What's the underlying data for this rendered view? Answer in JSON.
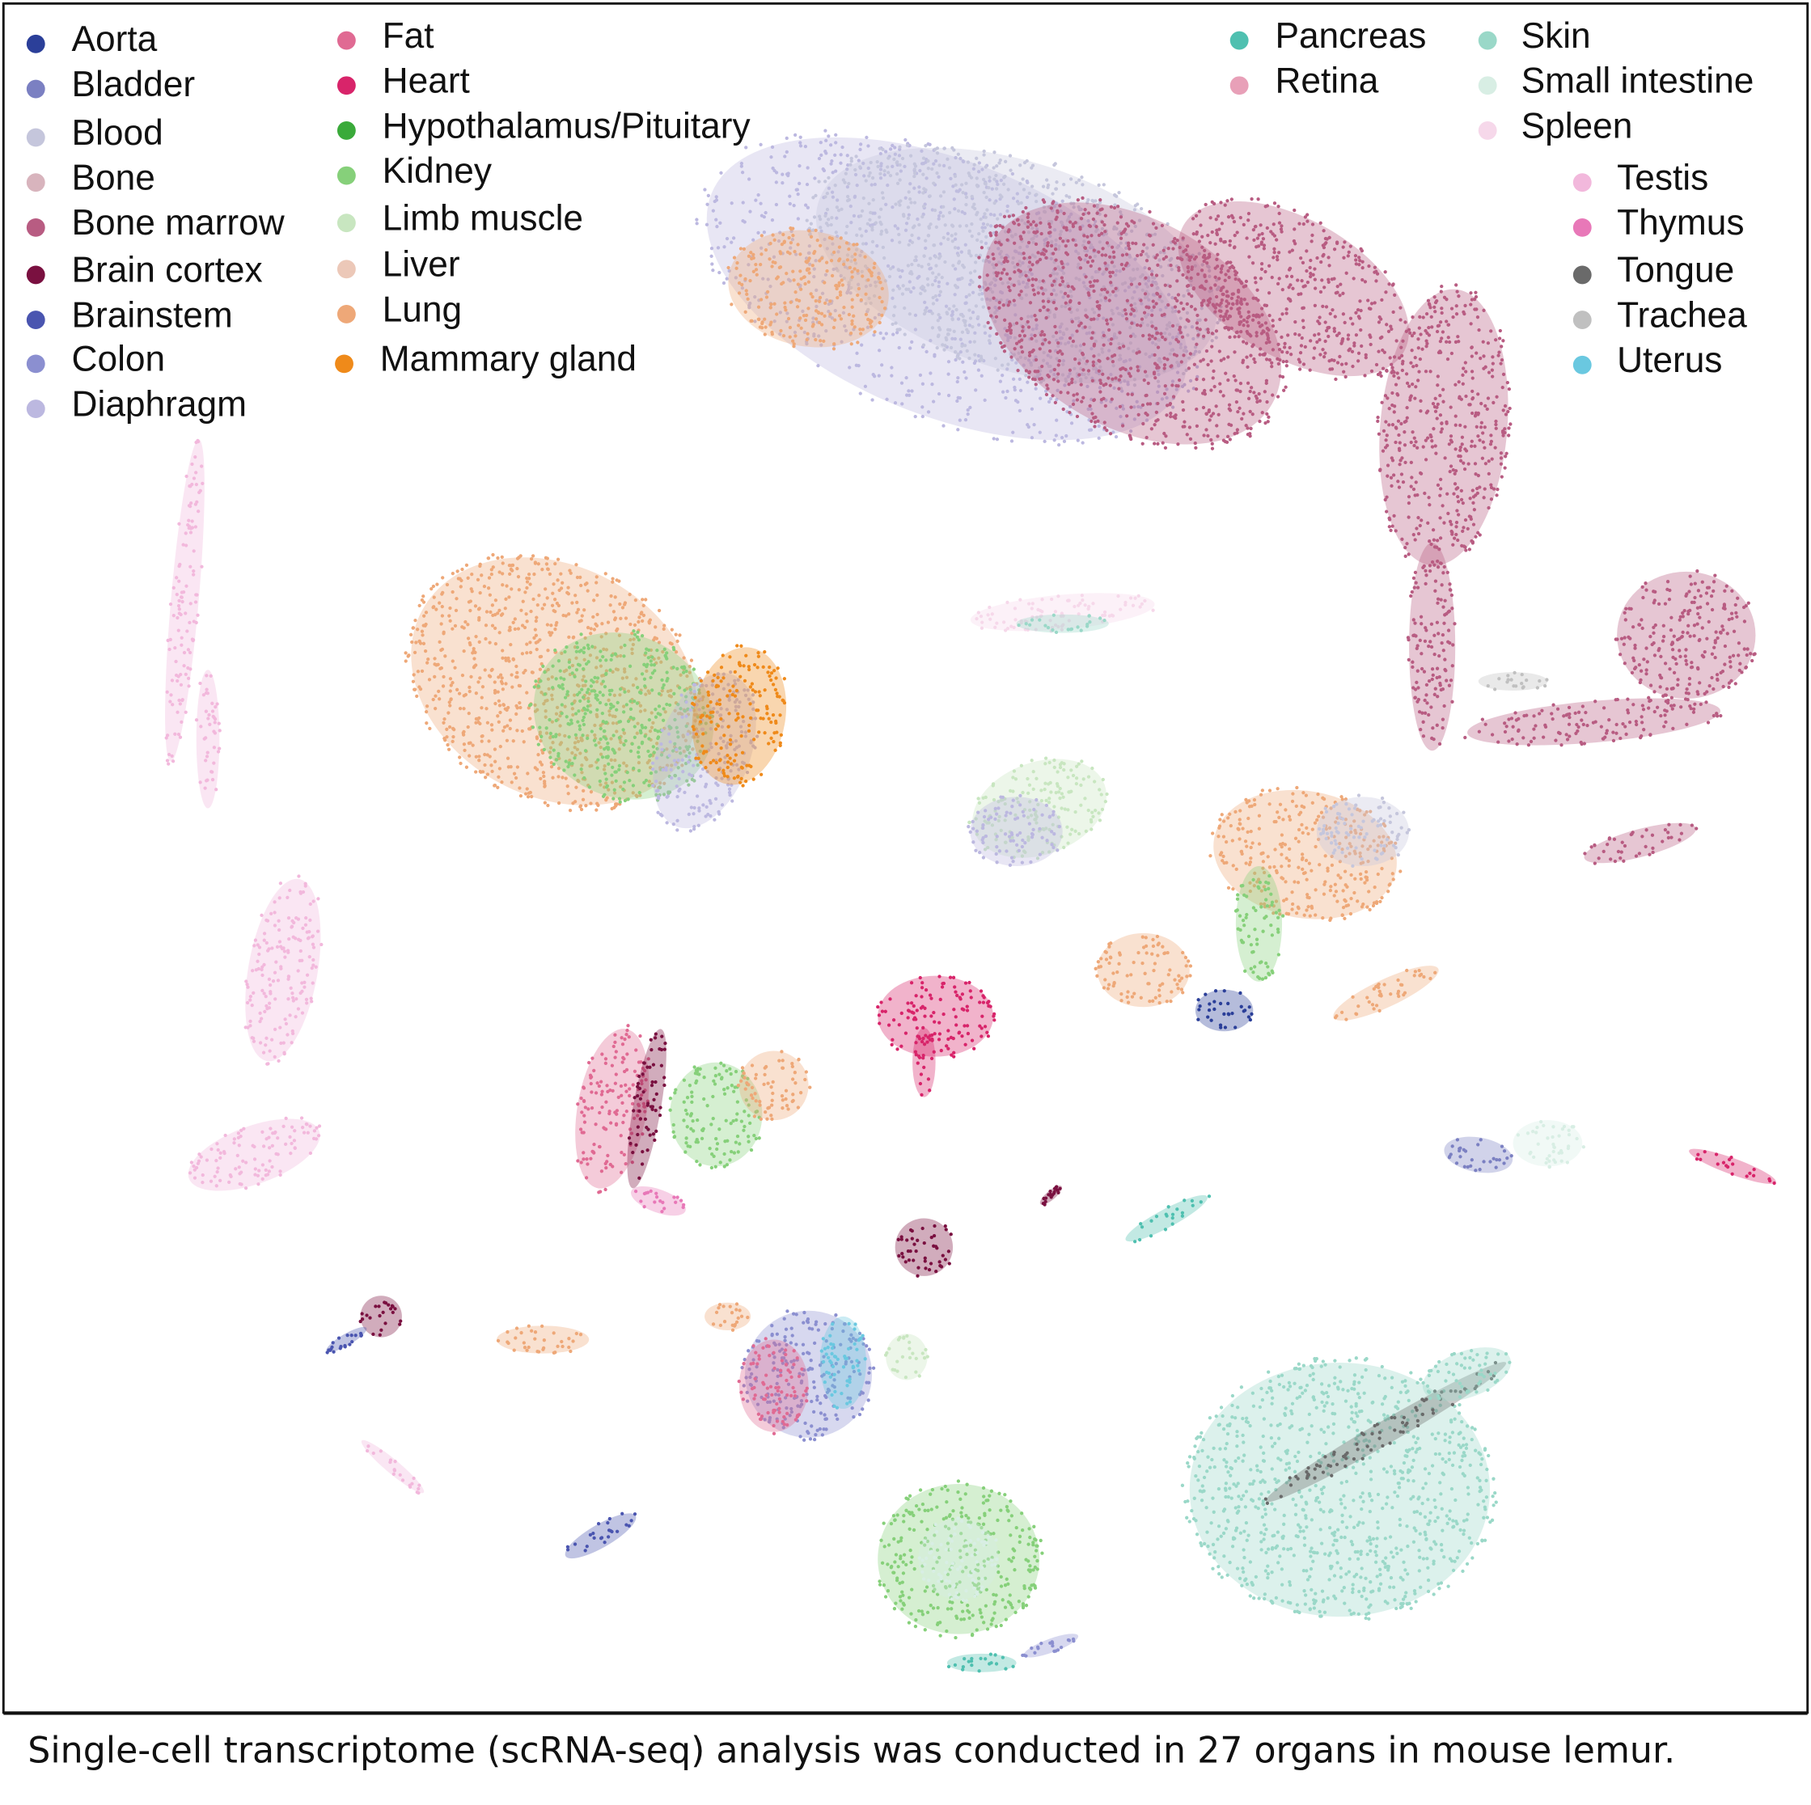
{
  "legend": {
    "items": [
      {
        "label": "Aorta",
        "color": "#2b3f99"
      },
      {
        "label": "Bladder",
        "color": "#7b80c2"
      },
      {
        "label": "Blood",
        "color": "#c5c6dc"
      },
      {
        "label": "Bone",
        "color": "#d8b4bd"
      },
      {
        "label": "Bone marrow",
        "color": "#b85c82"
      },
      {
        "label": "Brain cortex",
        "color": "#7a1040"
      },
      {
        "label": "Brainstem",
        "color": "#4a55b0"
      },
      {
        "label": "Colon",
        "color": "#8b8fd0"
      },
      {
        "label": "Diaphragm",
        "color": "#bcb8e0"
      },
      {
        "label": "Fat",
        "color": "#e06a93"
      },
      {
        "label": "Heart",
        "color": "#d8246a"
      },
      {
        "label": "Hypothalamus/Pituitary",
        "color": "#3aaa3a"
      },
      {
        "label": "Kidney",
        "color": "#86d07a"
      },
      {
        "label": "Limb muscle",
        "color": "#c8e6c0"
      },
      {
        "label": "Liver",
        "color": "#ecc8b8"
      },
      {
        "label": "Lung",
        "color": "#eea878"
      },
      {
        "label": "Mammary gland",
        "color": "#ef8a1a"
      },
      {
        "label": "Pancreas",
        "color": "#4fc0b0"
      },
      {
        "label": "Retina",
        "color": "#e8a0b8"
      },
      {
        "label": "Skin",
        "color": "#9ad8c8"
      },
      {
        "label": "Small intestine",
        "color": "#d8eee4"
      },
      {
        "label": "Spleen",
        "color": "#f6d8ea"
      },
      {
        "label": "Testis",
        "color": "#f2b8dc"
      },
      {
        "label": "Thymus",
        "color": "#e878b8"
      },
      {
        "label": "Tongue",
        "color": "#6a6a6a"
      },
      {
        "label": "Trachea",
        "color": "#c0c0c0"
      },
      {
        "label": "Uterus",
        "color": "#6ac8e0"
      }
    ]
  },
  "caption": "Single-cell transcriptome (scRNA-seq) analysis was conducted in 27 organs in mouse lemur."
}
